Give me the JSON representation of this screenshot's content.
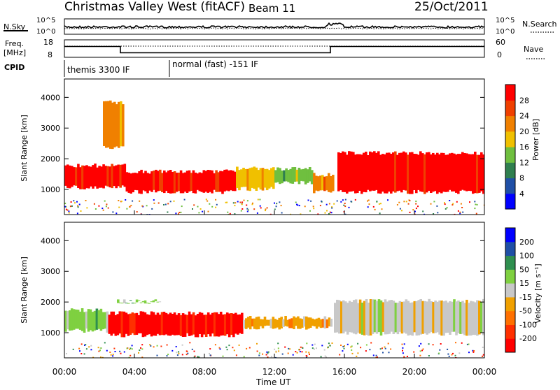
{
  "header": {
    "station": "Christmas Valley West (fitACF)",
    "beam": "Beam 11",
    "date": "25/Oct/2011"
  },
  "chart_data": [
    {
      "type": "line",
      "panel": "noise",
      "left_label": "N.Sky",
      "right_label": "N.Search",
      "left_ticks": [
        "10^5",
        "10^0"
      ],
      "right_ticks": [
        "10^5",
        "10^0"
      ]
    },
    {
      "type": "line",
      "panel": "frequency",
      "left_label_1": "Freq.",
      "left_label_2": "[MHz]",
      "left_ticks": [
        "18",
        "8"
      ],
      "right_label": "Nave",
      "right_ticks": [
        "60",
        "0"
      ],
      "frequency_steps": [
        {
          "t": 0.0,
          "mhz": 14.2
        },
        {
          "t": 3.2,
          "mhz": 10.6
        },
        {
          "t": 15.2,
          "mhz": 14.2
        },
        {
          "t": 24.0,
          "mhz": 14.2
        }
      ]
    },
    {
      "type": "table",
      "panel": "cpid",
      "label": "CPID",
      "modes": [
        {
          "start_hr": 0.0,
          "label": "themis 3300 IF"
        },
        {
          "start_hr": 6.0,
          "label": "normal (fast) -151 IF"
        }
      ]
    },
    {
      "type": "heatmap",
      "panel": "power",
      "ylabel": "Slant Range [km]",
      "y_ticks": [
        1000,
        2000,
        3000,
        4000
      ],
      "ylim": [
        180,
        4600
      ],
      "xlim": [
        0,
        24
      ],
      "colorbar_title": "Power [dB]",
      "colorbar_ticks": [
        28,
        24,
        20,
        16,
        12,
        8,
        4
      ],
      "colors": [
        "#0000ff",
        "#1f4fa6",
        "#2f7f4f",
        "#6fbf3f",
        "#f0c000",
        "#f08000",
        "#f04000",
        "#ff0000"
      ],
      "regions": [
        {
          "t0": 0.0,
          "t1": 3.5,
          "r0": 1000,
          "r1": 1850,
          "level": 7
        },
        {
          "t0": 3.5,
          "t1": 9.8,
          "r0": 850,
          "r1": 1650,
          "level": 7
        },
        {
          "t0": 9.8,
          "t1": 12.0,
          "r0": 950,
          "r1": 1750,
          "level": 4
        },
        {
          "t0": 12.0,
          "t1": 14.2,
          "r0": 1150,
          "r1": 1750,
          "level": 3
        },
        {
          "t0": 14.2,
          "t1": 15.4,
          "r0": 850,
          "r1": 1550,
          "level": 5
        },
        {
          "t0": 15.6,
          "t1": 24.0,
          "r0": 850,
          "r1": 2250,
          "level": 7
        },
        {
          "t0": 2.2,
          "t1": 3.4,
          "r0": 2300,
          "r1": 3900,
          "level": 5
        }
      ]
    },
    {
      "type": "heatmap",
      "panel": "velocity",
      "ylabel": "Slant Range [km]",
      "y_ticks": [
        1000,
        2000,
        3000,
        4000
      ],
      "ylim": [
        180,
        4600
      ],
      "xlim": [
        0,
        24
      ],
      "colorbar_title": "Velocity [m s⁻¹]",
      "colorbar_ticks": [
        200,
        100,
        50,
        15,
        -15,
        -50,
        -100,
        -200
      ],
      "colors": [
        "#ff0000",
        "#ff3000",
        "#ff7000",
        "#f0a000",
        "#c8c8c8",
        "#7fd040",
        "#2f8f4f",
        "#1f4fa6",
        "#0000ff"
      ],
      "regions": [
        {
          "t0": 0.0,
          "t1": 2.5,
          "r0": 1000,
          "r1": 1800,
          "level": 5
        },
        {
          "t0": 2.5,
          "t1": 10.2,
          "r0": 850,
          "r1": 1700,
          "level": 0
        },
        {
          "t0": 10.2,
          "t1": 15.3,
          "r0": 1100,
          "r1": 1550,
          "level": 3
        },
        {
          "t0": 15.4,
          "t1": 24.0,
          "r0": 900,
          "r1": 2100,
          "level": 4
        },
        {
          "t0": 3.0,
          "t1": 5.5,
          "r0": 1950,
          "r1": 2100,
          "level": 5
        }
      ]
    }
  ],
  "x_axis": {
    "label": "Time UT",
    "ticks": [
      "00:00",
      "04:00",
      "08:00",
      "12:00",
      "16:00",
      "20:00",
      "00:00"
    ]
  }
}
